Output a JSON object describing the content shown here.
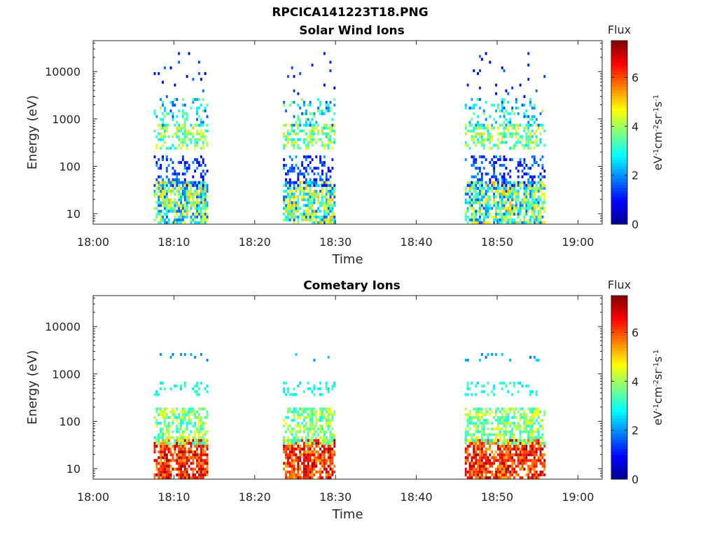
{
  "page": {
    "title": "RPCICA141223T18.PNG"
  },
  "colormap": {
    "stops": [
      "#00008f",
      "#0000ff",
      "#0080ff",
      "#00ffff",
      "#80ff80",
      "#ffff00",
      "#ff8000",
      "#ff0000",
      "#800000"
    ]
  },
  "chart_data": [
    {
      "type": "heatmap",
      "title": "Solar Wind Ions",
      "xlabel": "Time",
      "ylabel": "Energy (eV)",
      "x_ticks": [
        "18:00",
        "18:10",
        "18:20",
        "18:30",
        "18:40",
        "18:50",
        "19:00"
      ],
      "x_range_minutes": [
        0,
        63
      ],
      "y_scale": "log",
      "y_range": [
        6,
        45000
      ],
      "y_ticks": [
        "10",
        "100",
        "1000",
        "10000"
      ],
      "colorbar": {
        "label": "Flux",
        "units_html": "eV<tspan baseline-shift='super' font-size='10'>-1</tspan>cm<tspan baseline-shift='super' font-size='10'>-2</tspan>sr<tspan baseline-shift='super' font-size='10'>-1</tspan>s<tspan baseline-shift='super' font-size='10'>-1</tspan>",
        "units": "eV-1cm-2sr-1s-1",
        "range": [
          0,
          7.5
        ],
        "ticks": [
          "0",
          "2",
          "4",
          "6"
        ]
      },
      "bursts": [
        {
          "t_start": 7.5,
          "t_end": 14.2
        },
        {
          "t_start": 23.5,
          "t_end": 30.0
        },
        {
          "t_start": 46.0,
          "t_end": 55.8
        }
      ],
      "bands": [
        {
          "e_min": 6,
          "e_max": 45,
          "flux_min": 1.5,
          "flux_max": 5.3,
          "density": 0.85
        },
        {
          "e_min": 40,
          "e_max": 160,
          "flux_min": 0.6,
          "flux_max": 2.2,
          "density": 0.35
        },
        {
          "e_min": 250,
          "e_max": 700,
          "flux_min": 2.5,
          "flux_max": 5.0,
          "density": 0.55
        },
        {
          "e_min": 700,
          "e_max": 2500,
          "flux_min": 1.5,
          "flux_max": 4.0,
          "density": 0.3
        },
        {
          "e_min": 3000,
          "e_max": 25000,
          "flux_min": 0.6,
          "flux_max": 1.8,
          "density": 0.04
        }
      ]
    },
    {
      "type": "heatmap",
      "title": "Cometary Ions",
      "xlabel": "Time",
      "ylabel": "Energy (eV)",
      "x_ticks": [
        "18:00",
        "18:10",
        "18:20",
        "18:30",
        "18:40",
        "18:50",
        "19:00"
      ],
      "x_range_minutes": [
        0,
        63
      ],
      "y_scale": "log",
      "y_range": [
        6,
        45000
      ],
      "y_ticks": [
        "10",
        "100",
        "1000",
        "10000"
      ],
      "colorbar": {
        "label": "Flux",
        "units_html": "eV<tspan baseline-shift='super' font-size='10'>-1</tspan>cm<tspan baseline-shift='super' font-size='10'>-2</tspan>sr<tspan baseline-shift='super' font-size='10'>-1</tspan>s<tspan baseline-shift='super' font-size='10'>-1</tspan>",
        "units": "eV-1cm-2sr-1s-1",
        "range": [
          0,
          7.5
        ],
        "ticks": [
          "0",
          "2",
          "4",
          "6"
        ]
      },
      "bursts": [
        {
          "t_start": 7.5,
          "t_end": 14.2
        },
        {
          "t_start": 23.5,
          "t_end": 30.0
        },
        {
          "t_start": 46.0,
          "t_end": 55.8
        }
      ],
      "bands": [
        {
          "e_min": 6,
          "e_max": 40,
          "flux_min": 5.2,
          "flux_max": 7.3,
          "density": 0.92
        },
        {
          "e_min": 35,
          "e_max": 180,
          "flux_min": 2.8,
          "flux_max": 4.8,
          "density": 0.7
        },
        {
          "e_min": 350,
          "e_max": 650,
          "flux_min": 2.5,
          "flux_max": 3.5,
          "density": 0.25
        },
        {
          "e_min": 2000,
          "e_max": 2600,
          "flux_min": 1.8,
          "flux_max": 2.6,
          "density": 0.12
        }
      ]
    }
  ]
}
